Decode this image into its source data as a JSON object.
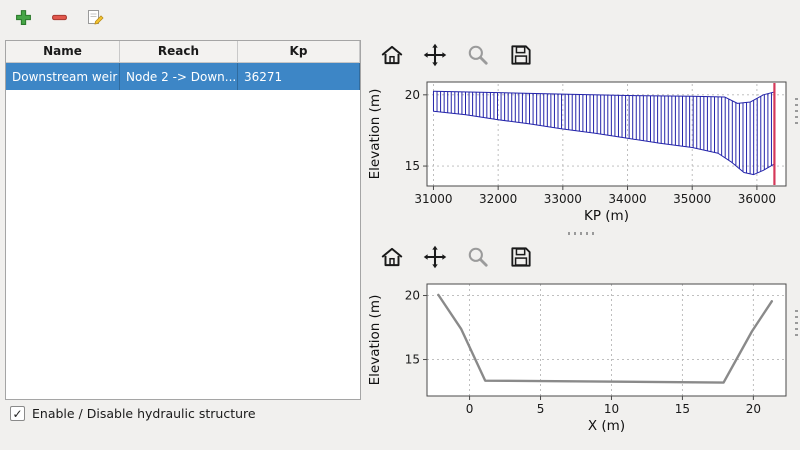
{
  "toolbar": {
    "buttons": [
      {
        "id": "add-structure",
        "icon": "plus-icon"
      },
      {
        "id": "remove-structure",
        "icon": "minus-icon"
      },
      {
        "id": "edit-structure",
        "icon": "edit-icon"
      }
    ]
  },
  "table": {
    "columns": [
      "Name",
      "Reach",
      "Kp"
    ],
    "rows": [
      {
        "name": "Downstream weir",
        "reach": "Node 2 -> Down...",
        "kp": "36271",
        "selected": true
      }
    ]
  },
  "checkbox": {
    "label": "Enable / Disable hydraulic structure",
    "checked": true
  },
  "plot_toolbar": {
    "icons": [
      "home-icon",
      "pan-icon",
      "zoom-icon",
      "save-icon"
    ]
  },
  "colors": {
    "selection_blue": "#3d86c6",
    "hatch_blue": "#2424aa",
    "marker_red": "#d5385a",
    "section_gray": "#8a8a8a"
  },
  "chart_data": [
    {
      "type": "area",
      "name": "longitudinal-profile",
      "title": "",
      "xlabel": "KP (m)",
      "ylabel": "Elevation (m)",
      "xlim": [
        30900,
        36450
      ],
      "ylim": [
        13.6,
        20.9
      ],
      "xticks": [
        31000,
        32000,
        33000,
        34000,
        35000,
        36000
      ],
      "yticks": [
        15,
        20
      ],
      "grid": true,
      "hatch": {
        "top": "top_profile",
        "bottom": "bottom_profile",
        "x0": 31000,
        "x1": 36230,
        "step": 55,
        "color": "#2424aa"
      },
      "series": [
        {
          "name": "top_profile",
          "color": "#2424aa",
          "width": 1,
          "x": [
            31000,
            32000,
            33000,
            34000,
            35000,
            35500,
            35700,
            35900,
            36100,
            36271
          ],
          "y": [
            20.25,
            20.15,
            20.05,
            19.95,
            19.9,
            19.85,
            19.4,
            19.5,
            20.0,
            20.2
          ]
        },
        {
          "name": "bottom_profile",
          "color": "#2424aa",
          "width": 1,
          "x": [
            31000,
            31500,
            32000,
            32500,
            33000,
            33500,
            34000,
            34500,
            35000,
            35400,
            35600,
            35800,
            35950,
            36100,
            36271
          ],
          "y": [
            18.85,
            18.6,
            18.25,
            17.95,
            17.6,
            17.3,
            16.95,
            16.6,
            16.3,
            15.9,
            15.3,
            14.55,
            14.4,
            14.7,
            15.15
          ]
        }
      ],
      "marker_line": {
        "x": 36271,
        "color": "#d5385a"
      }
    },
    {
      "type": "line",
      "name": "cross-section",
      "title": "",
      "xlabel": "X (m)",
      "ylabel": "Elevation (m)",
      "xlim": [
        -3,
        22.3
      ],
      "ylim": [
        12.15,
        20.9
      ],
      "xticks": [
        0,
        5,
        10,
        15,
        20
      ],
      "yticks": [
        15,
        20
      ],
      "grid": true,
      "series": [
        {
          "name": "section",
          "color": "#8a8a8a",
          "width": 2.4,
          "x": [
            -2.2,
            -0.6,
            1.1,
            17.9,
            19.9,
            21.3
          ],
          "y": [
            20.05,
            17.4,
            13.35,
            13.2,
            17.2,
            19.55
          ]
        }
      ]
    }
  ]
}
